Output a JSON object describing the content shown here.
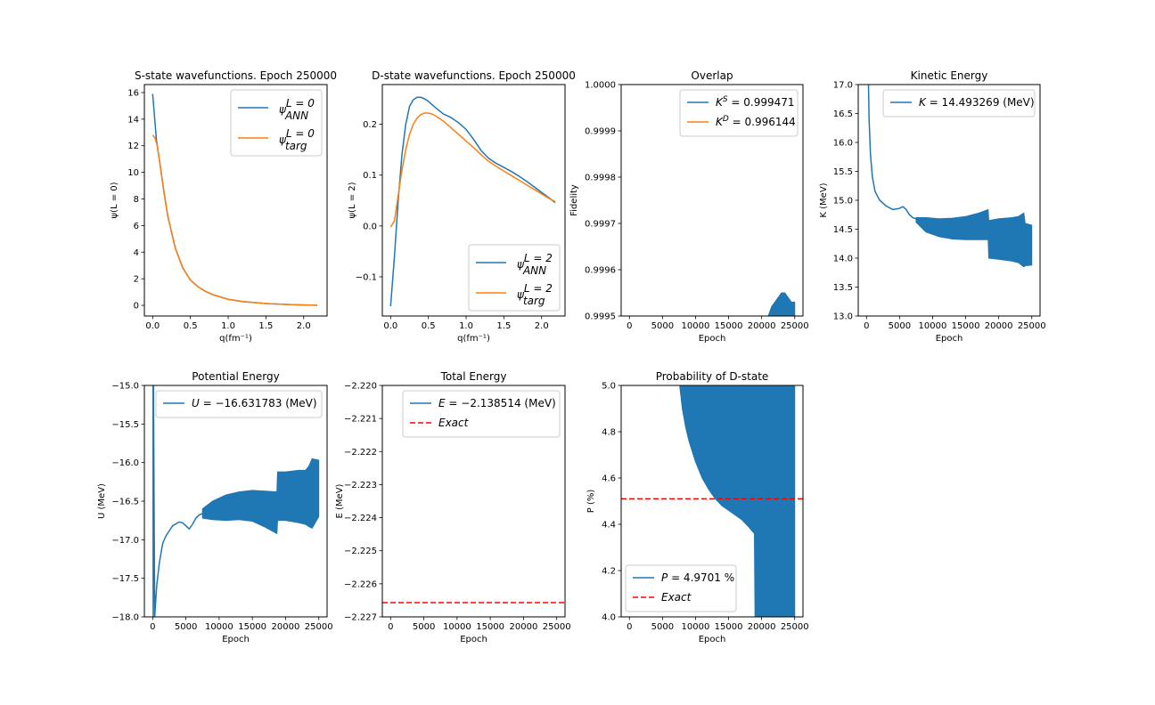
{
  "figure": {
    "colors": {
      "blue": "#1f77b4",
      "orange": "#ff7f0e",
      "red": "#ff0000"
    }
  },
  "chart_data": [
    {
      "id": "s-state",
      "type": "line",
      "title": "S-state wavefunctions. Epoch 250000",
      "xlabel": "q(fm⁻¹)",
      "ylabel": "ψ(L = 0)",
      "xlim": [
        -0.11,
        2.31
      ],
      "ylim": [
        -0.8,
        16.6
      ],
      "xticks": [
        0.0,
        0.5,
        1.0,
        1.5,
        2.0
      ],
      "xtick_labels": [
        "0.0",
        "0.5",
        "1.0",
        "1.5",
        "2.0"
      ],
      "yticks": [
        0,
        2,
        4,
        6,
        8,
        10,
        12,
        14,
        16
      ],
      "ytick_labels": [
        "0",
        "2",
        "4",
        "6",
        "8",
        "10",
        "12",
        "14",
        "16"
      ],
      "legend_position": "upper right",
      "series": [
        {
          "name": "ψ",
          "sup": "L = 0",
          "sub": "ANN",
          "color": "#1f77b4",
          "x": [
            0.0,
            0.05,
            0.1,
            0.15,
            0.2,
            0.3,
            0.4,
            0.5,
            0.6,
            0.7,
            0.8,
            1.0,
            1.2,
            1.5,
            1.8,
            2.0,
            2.18
          ],
          "y": [
            15.9,
            12.4,
            10.5,
            8.5,
            6.7,
            4.3,
            2.8,
            1.9,
            1.4,
            1.05,
            0.8,
            0.45,
            0.28,
            0.14,
            0.06,
            0.03,
            0.01
          ]
        },
        {
          "name": "ψ",
          "sup": "L = 0",
          "sub": "targ",
          "color": "#ff7f0e",
          "x": [
            0.0,
            0.03,
            0.06,
            0.1,
            0.15,
            0.2,
            0.3,
            0.4,
            0.5,
            0.6,
            0.7,
            0.8,
            1.0,
            1.2,
            1.5,
            1.8,
            2.0,
            2.18
          ],
          "y": [
            12.8,
            12.6,
            12.0,
            10.5,
            8.5,
            6.7,
            4.3,
            2.8,
            1.9,
            1.4,
            1.05,
            0.8,
            0.45,
            0.28,
            0.14,
            0.06,
            0.03,
            0.01
          ]
        }
      ]
    },
    {
      "id": "d-state",
      "type": "line",
      "title": "D-state wavefunctions. Epoch 250000",
      "xlabel": "q(fm⁻¹)",
      "ylabel": "ψ(L = 2)",
      "xlim": [
        -0.11,
        2.31
      ],
      "ylim": [
        -0.177,
        0.278
      ],
      "xticks": [
        0.0,
        0.5,
        1.0,
        1.5,
        2.0
      ],
      "xtick_labels": [
        "0.0",
        "0.5",
        "1.0",
        "1.5",
        "2.0"
      ],
      "yticks": [
        -0.1,
        0.0,
        0.1,
        0.2
      ],
      "ytick_labels": [
        "−0.1",
        "0.0",
        "0.1",
        "0.2"
      ],
      "legend_position": "lower right",
      "series": [
        {
          "name": "ψ",
          "sup": "L = 2",
          "sub": "ANN",
          "color": "#1f77b4",
          "x": [
            0.0,
            0.05,
            0.1,
            0.15,
            0.2,
            0.25,
            0.3,
            0.35,
            0.4,
            0.45,
            0.5,
            0.6,
            0.7,
            0.8,
            0.9,
            1.0,
            1.1,
            1.2,
            1.3,
            1.4,
            1.5,
            1.6,
            1.7,
            1.8,
            1.9,
            2.0,
            2.1,
            2.18
          ],
          "y": [
            -0.158,
            -0.06,
            0.05,
            0.14,
            0.2,
            0.235,
            0.248,
            0.253,
            0.253,
            0.25,
            0.245,
            0.232,
            0.22,
            0.213,
            0.203,
            0.19,
            0.17,
            0.148,
            0.133,
            0.123,
            0.115,
            0.107,
            0.098,
            0.088,
            0.077,
            0.066,
            0.055,
            0.046
          ]
        },
        {
          "name": "ψ",
          "sup": "L = 2",
          "sub": "targ",
          "color": "#ff7f0e",
          "x": [
            0.0,
            0.05,
            0.1,
            0.15,
            0.2,
            0.25,
            0.3,
            0.35,
            0.4,
            0.45,
            0.5,
            0.55,
            0.6,
            0.7,
            0.8,
            0.9,
            1.0,
            1.1,
            1.2,
            1.3,
            1.4,
            1.5,
            1.6,
            1.7,
            1.8,
            1.9,
            2.0,
            2.1,
            2.18
          ],
          "y": [
            -0.002,
            0.01,
            0.06,
            0.11,
            0.15,
            0.18,
            0.2,
            0.212,
            0.219,
            0.222,
            0.222,
            0.22,
            0.216,
            0.206,
            0.193,
            0.18,
            0.167,
            0.154,
            0.14,
            0.127,
            0.117,
            0.108,
            0.099,
            0.09,
            0.081,
            0.072,
            0.063,
            0.054,
            0.048
          ]
        }
      ]
    },
    {
      "id": "overlap",
      "type": "line",
      "title": "Overlap",
      "xlabel": "Epoch",
      "ylabel": "Fidelity",
      "xlim": [
        -1250,
        26250
      ],
      "ylim": [
        0.9995,
        1.0
      ],
      "xticks": [
        0,
        5000,
        10000,
        15000,
        20000,
        25000
      ],
      "xtick_labels": [
        "0",
        "5000",
        "10000",
        "15000",
        "20000",
        "25000"
      ],
      "yticks": [
        0.9995,
        0.9996,
        0.9997,
        0.9998,
        0.9999,
        1.0
      ],
      "ytick_labels": [
        "0.9995",
        "0.9996",
        "0.9997",
        "0.9998",
        "0.9999",
        "1.0000"
      ],
      "legend_position": "upper right",
      "series": [
        {
          "name": "K",
          "sup": "S",
          "value": " = 0.999471",
          "color": "#1f77b4",
          "band": {
            "x": [
              21000,
              21500,
              22000,
              22500,
              23000,
              23500,
              24000,
              24500,
              25000
            ],
            "lower": [
              0.9995,
              0.9995,
              0.9995,
              0.9995,
              0.9995,
              0.9995,
              0.9995,
              0.9995,
              0.9995
            ],
            "upper": [
              0.9995,
              0.99952,
              0.99953,
              0.99954,
              0.99955,
              0.99955,
              0.99954,
              0.99953,
              0.99953
            ]
          }
        },
        {
          "name": "K",
          "sup": "D",
          "value": " = 0.996144",
          "color": "#ff7f0e"
        }
      ]
    },
    {
      "id": "kinetic",
      "type": "line",
      "title": "Kinetic Energy",
      "xlabel": "Epoch",
      "ylabel": "K (MeV)",
      "xlim": [
        -1250,
        26250
      ],
      "ylim": [
        13.0,
        17.0
      ],
      "xticks": [
        0,
        5000,
        10000,
        15000,
        20000,
        25000
      ],
      "xtick_labels": [
        "0",
        "5000",
        "10000",
        "15000",
        "20000",
        "25000"
      ],
      "yticks": [
        13.0,
        13.5,
        14.0,
        14.5,
        15.0,
        15.5,
        16.0,
        16.5,
        17.0
      ],
      "ytick_labels": [
        "13.0",
        "13.5",
        "14.0",
        "14.5",
        "15.0",
        "15.5",
        "16.0",
        "16.5",
        "17.0"
      ],
      "legend_position": "upper right",
      "series": [
        {
          "name": "K",
          "value": " = 14.493269 (MeV)",
          "color": "#1f77b4",
          "x": [
            300,
            400,
            600,
            900,
            1300,
            2000,
            3000,
            4000,
            5000,
            5500,
            6000,
            6500,
            7000,
            7500
          ],
          "y": [
            17.0,
            16.4,
            15.8,
            15.4,
            15.15,
            15.0,
            14.9,
            14.84,
            14.86,
            14.89,
            14.84,
            14.75,
            14.7,
            14.68
          ],
          "band": {
            "x": [
              7500,
              9000,
              11000,
              13000,
              15000,
              17000,
              18400,
              18500,
              20000,
              22000,
              23000,
              23800,
              24000,
              25000
            ],
            "lower": [
              14.62,
              14.45,
              14.37,
              14.33,
              14.32,
              14.32,
              14.32,
              14.0,
              13.98,
              13.95,
              13.92,
              13.85,
              13.87,
              13.88
            ],
            "upper": [
              14.7,
              14.7,
              14.68,
              14.69,
              14.72,
              14.78,
              14.84,
              14.65,
              14.68,
              14.7,
              14.72,
              14.78,
              14.6,
              14.57
            ]
          }
        }
      ]
    },
    {
      "id": "potential",
      "type": "line",
      "title": "Potential Energy",
      "xlabel": "Epoch",
      "ylabel": "U (MeV)",
      "xlim": [
        -1250,
        26250
      ],
      "ylim": [
        -18.0,
        -15.0
      ],
      "xticks": [
        0,
        5000,
        10000,
        15000,
        20000,
        25000
      ],
      "xtick_labels": [
        "0",
        "5000",
        "10000",
        "15000",
        "20000",
        "25000"
      ],
      "yticks": [
        -18.0,
        -17.5,
        -17.0,
        -16.5,
        -16.0,
        -15.5,
        -15.0
      ],
      "ytick_labels": [
        "−18.0",
        "−17.5",
        "−17.0",
        "−16.5",
        "−16.0",
        "−15.5",
        "−15.0"
      ],
      "legend_position": "upper right",
      "series": [
        {
          "name": "U",
          "value": " = −16.631783 (MeV)",
          "color": "#1f77b4",
          "x": [
            50,
            60,
            80,
            100,
            120,
            300,
            600,
            1000,
            1500,
            2000,
            3000,
            4000,
            4500,
            5000,
            5500,
            6000,
            6500,
            7000,
            7500
          ],
          "y": [
            -15.0,
            -17.0,
            -18.0,
            -17.0,
            -15.0,
            -18.0,
            -17.6,
            -17.3,
            -17.05,
            -16.95,
            -16.82,
            -16.77,
            -16.78,
            -16.82,
            -16.86,
            -16.8,
            -16.72,
            -16.68,
            -16.66
          ],
          "band": {
            "x": [
              7500,
              9000,
              11000,
              13000,
              15000,
              17000,
              18700,
              18800,
              20000,
              22000,
              23000,
              23500,
              24000,
              25000
            ],
            "lower": [
              -16.72,
              -16.74,
              -16.75,
              -16.74,
              -16.76,
              -16.84,
              -16.92,
              -16.75,
              -16.75,
              -16.78,
              -16.8,
              -16.83,
              -16.85,
              -16.7
            ],
            "upper": [
              -16.6,
              -16.5,
              -16.42,
              -16.38,
              -16.36,
              -16.37,
              -16.38,
              -16.12,
              -16.12,
              -16.1,
              -16.1,
              -16.05,
              -15.95,
              -15.97
            ]
          }
        }
      ]
    },
    {
      "id": "total",
      "type": "line",
      "title": "Total Energy",
      "xlabel": "Epoch",
      "ylabel": "E (MeV)",
      "xlim": [
        -1250,
        26250
      ],
      "ylim": [
        -2.227,
        -2.22
      ],
      "xticks": [
        0,
        5000,
        10000,
        15000,
        20000,
        25000
      ],
      "xtick_labels": [
        "0",
        "5000",
        "10000",
        "15000",
        "20000",
        "25000"
      ],
      "yticks": [
        -2.227,
        -2.226,
        -2.225,
        -2.224,
        -2.223,
        -2.222,
        -2.221,
        -2.22
      ],
      "ytick_labels": [
        "−2.227",
        "−2.226",
        "−2.225",
        "−2.224",
        "−2.223",
        "−2.222",
        "−2.221",
        "−2.220"
      ],
      "legend_position": "upper right",
      "series": [
        {
          "name": "E",
          "value": " = −2.138514 (MeV)",
          "color": "#1f77b4"
        },
        {
          "name": "Exact",
          "color": "#ff0000",
          "dashed": true,
          "hline": -2.22657
        }
      ]
    },
    {
      "id": "probability",
      "type": "line",
      "title": "Probability of D-state",
      "xlabel": "Epoch",
      "ylabel": "P (%)",
      "xlim": [
        -1250,
        26250
      ],
      "ylim": [
        4.0,
        5.0
      ],
      "xticks": [
        0,
        5000,
        10000,
        15000,
        20000,
        25000
      ],
      "xtick_labels": [
        "0",
        "5000",
        "10000",
        "15000",
        "20000",
        "25000"
      ],
      "yticks": [
        4.0,
        4.2,
        4.4,
        4.6,
        4.8,
        5.0
      ],
      "ytick_labels": [
        "4.0",
        "4.2",
        "4.4",
        "4.6",
        "4.8",
        "5.0"
      ],
      "legend_position": "lower left",
      "series": [
        {
          "name": "P",
          "value": " = 4.9701 %",
          "color": "#1f77b4",
          "band": {
            "x": [
              7600,
              8000,
              8500,
              9000,
              10000,
              11000,
              12000,
              13000,
              14000,
              15000,
              16000,
              17000,
              18000,
              18900,
              19000,
              25000
            ],
            "lower": [
              5.0,
              4.9,
              4.82,
              4.76,
              4.67,
              4.6,
              4.55,
              4.51,
              4.48,
              4.46,
              4.44,
              4.42,
              4.39,
              4.36,
              4.0,
              4.0
            ],
            "upper": [
              5.0,
              5.0,
              5.0,
              5.0,
              5.0,
              5.0,
              5.0,
              5.0,
              5.0,
              5.0,
              5.0,
              5.0,
              5.0,
              5.0,
              5.0,
              5.0
            ]
          }
        },
        {
          "name": "Exact",
          "color": "#ff0000",
          "dashed": true,
          "hline": 4.51
        }
      ]
    }
  ]
}
